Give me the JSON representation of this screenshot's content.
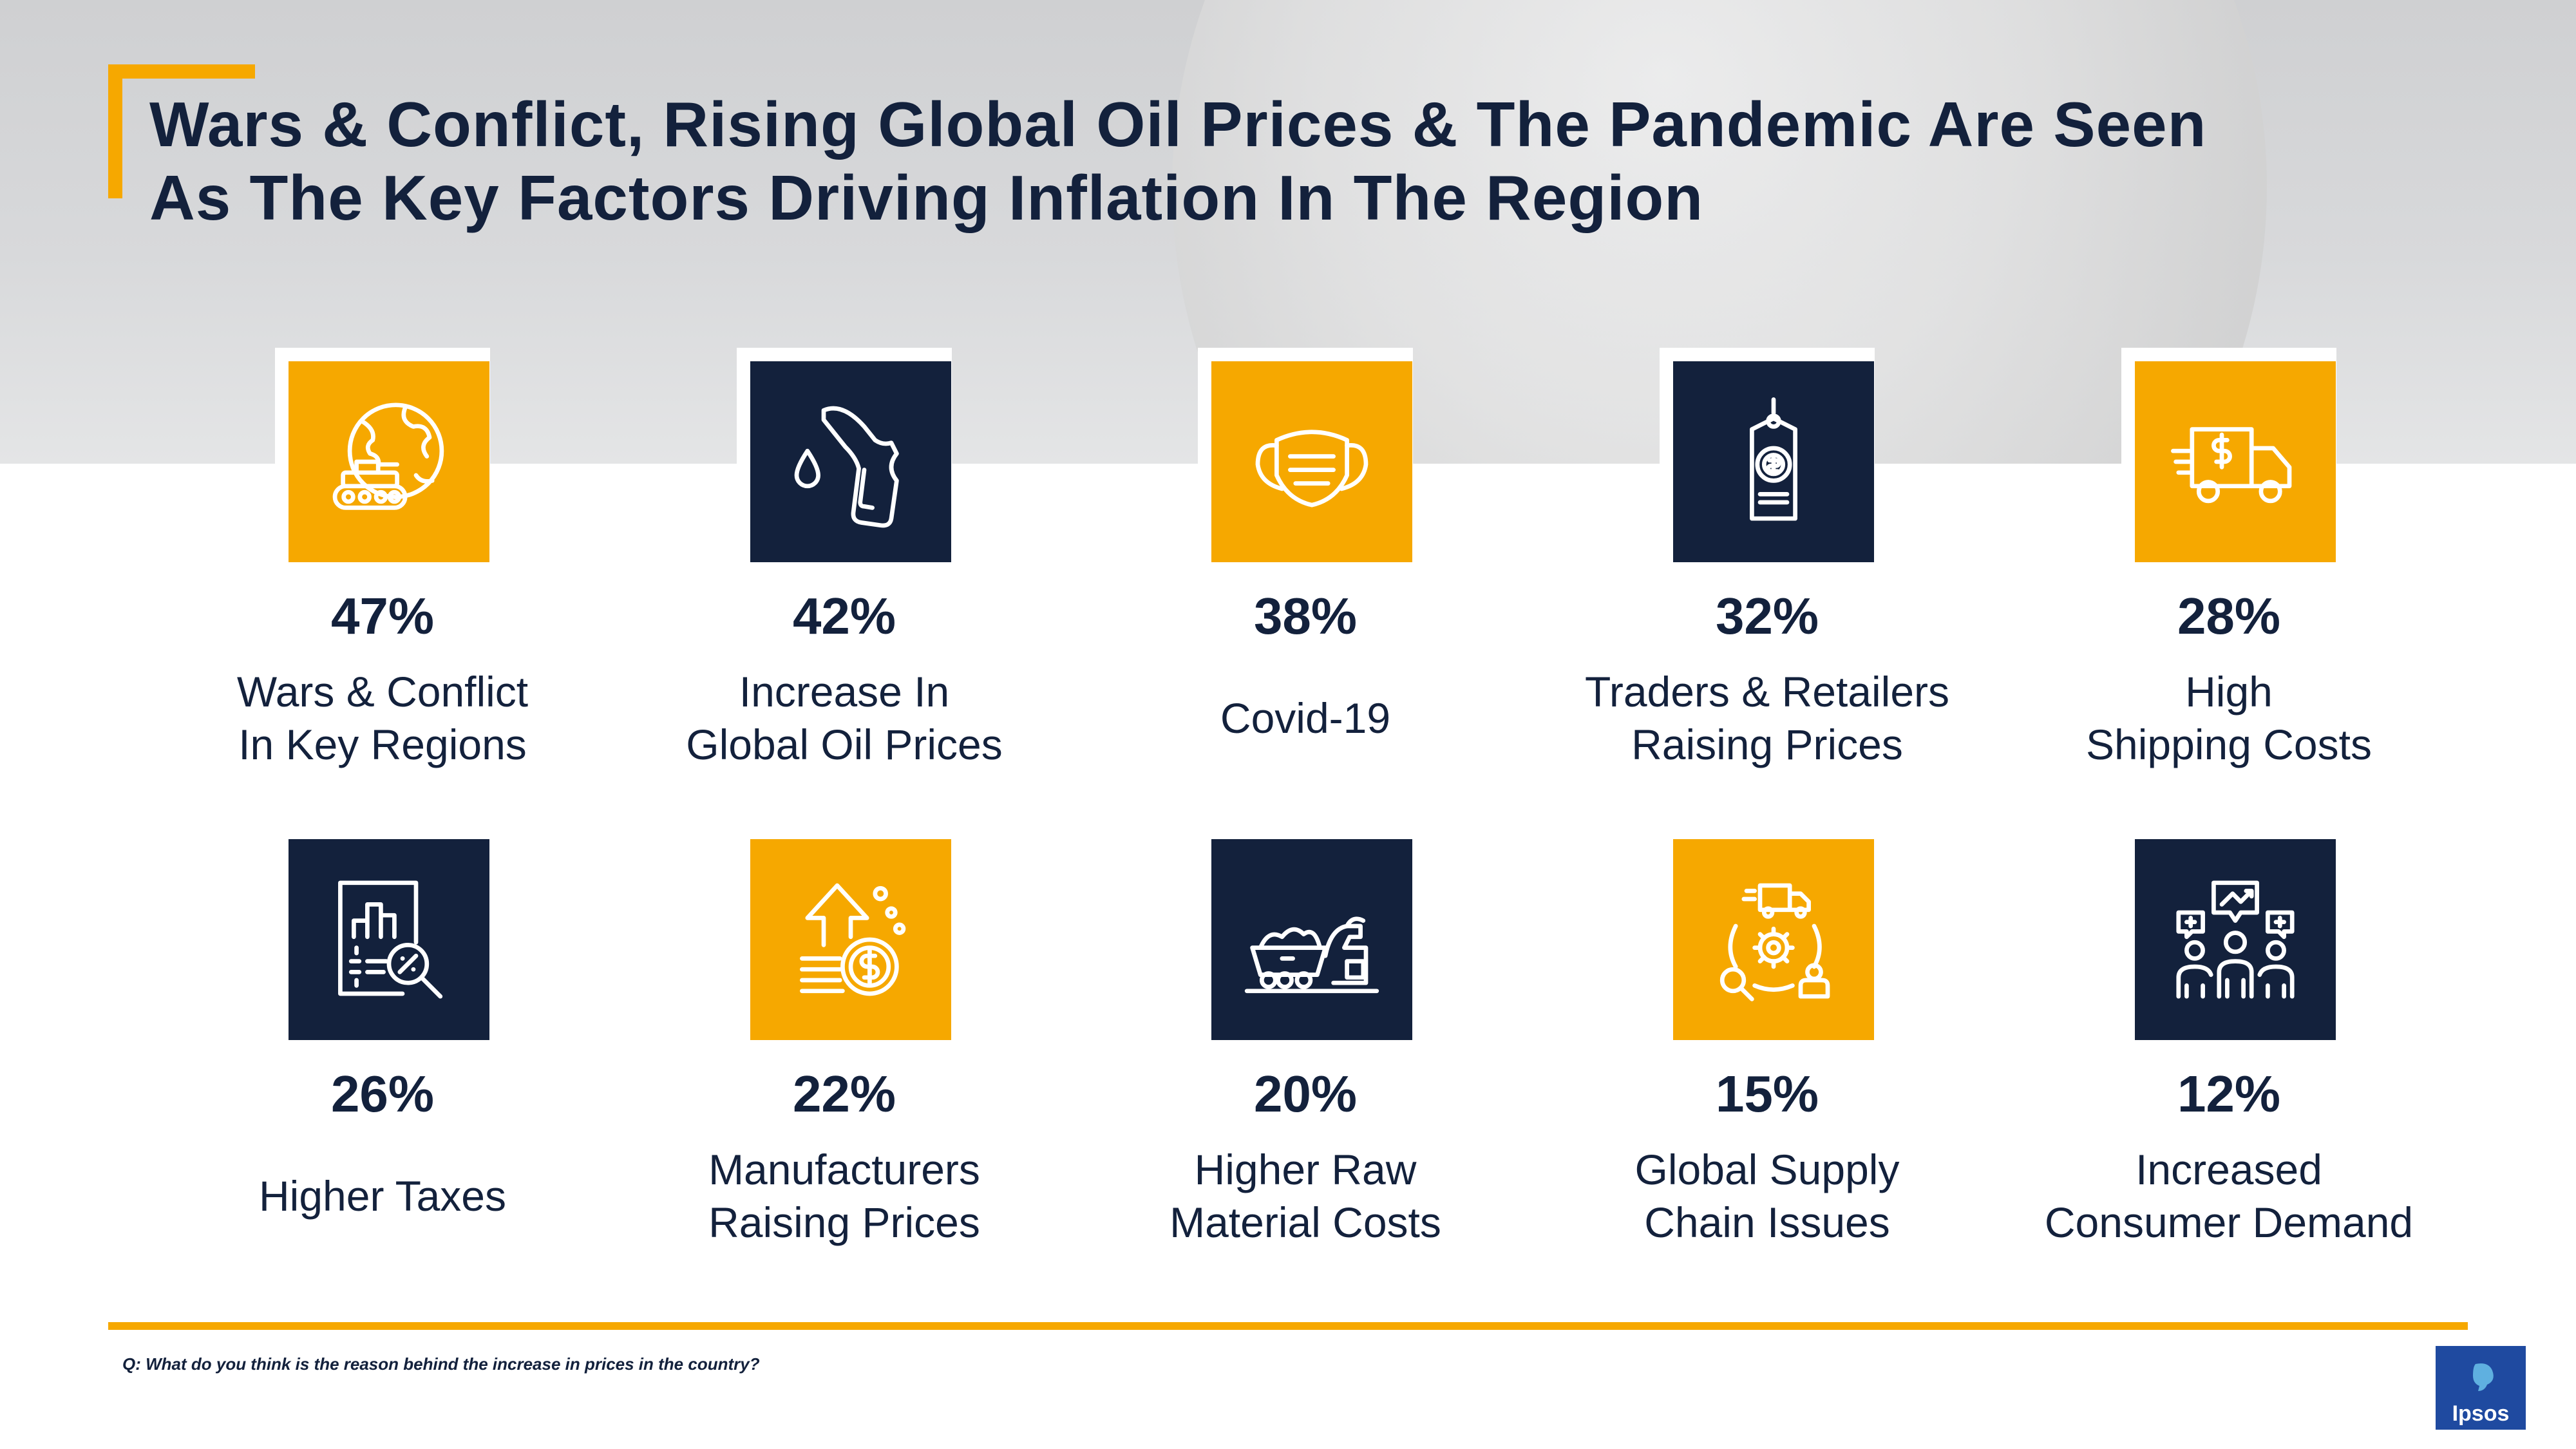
{
  "title": {
    "line1": "Wars & Conflict, Rising Global Oil Prices & The Pandemic Are Seen",
    "line2": "As The Key Factors Driving Inflation In The Region"
  },
  "colors": {
    "accent": "#f6a800",
    "navy": "#13213c",
    "logo_blue": "#1f4aa0"
  },
  "factors": [
    {
      "pct": "47%",
      "line1": "Wars & Conflict",
      "line2": "In Key Regions",
      "icon": "globe-tank-icon",
      "tile": "orange"
    },
    {
      "pct": "42%",
      "line1": "Increase In",
      "line2": "Global Oil Prices",
      "icon": "fuel-nozzle-icon",
      "tile": "navy"
    },
    {
      "pct": "38%",
      "line1": "Covid-19",
      "line2": "",
      "icon": "face-mask-icon",
      "tile": "orange"
    },
    {
      "pct": "32%",
      "line1": "Traders & Retailers",
      "line2": "Raising Prices",
      "icon": "price-tag-icon",
      "tile": "navy"
    },
    {
      "pct": "28%",
      "line1": "High",
      "line2": "Shipping Costs",
      "icon": "delivery-truck-icon",
      "tile": "orange"
    },
    {
      "pct": "26%",
      "line1": "Higher Taxes",
      "line2": "",
      "icon": "tax-report-icon",
      "tile": "navy"
    },
    {
      "pct": "22%",
      "line1": "Manufacturers",
      "line2": "Raising Prices",
      "icon": "coins-rising-icon",
      "tile": "orange"
    },
    {
      "pct": "20%",
      "line1": "Higher Raw",
      "line2": "Material Costs",
      "icon": "mining-cart-icon",
      "tile": "navy"
    },
    {
      "pct": "15%",
      "line1": "Global Supply",
      "line2": "Chain Issues",
      "icon": "supply-chain-icon",
      "tile": "orange"
    },
    {
      "pct": "12%",
      "line1": "Increased",
      "line2": "Consumer Demand",
      "icon": "consumer-demand-icon",
      "tile": "navy"
    }
  ],
  "footnote": "Q: What do you think is the reason behind the increase in prices in the country?",
  "logo": {
    "name": "Ipsos"
  }
}
